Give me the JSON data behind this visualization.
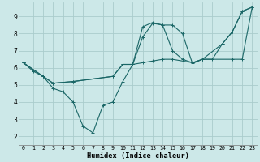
{
  "xlabel": "Humidex (Indice chaleur)",
  "background_color": "#cce8e8",
  "grid_color": "#aacccc",
  "line_color": "#1a6666",
  "xlim": [
    -0.5,
    23.5
  ],
  "ylim": [
    1.5,
    9.8
  ],
  "xticks": [
    0,
    1,
    2,
    3,
    4,
    5,
    6,
    7,
    8,
    9,
    10,
    11,
    12,
    13,
    14,
    15,
    16,
    17,
    18,
    19,
    20,
    21,
    22,
    23
  ],
  "yticks": [
    2,
    3,
    4,
    5,
    6,
    7,
    8,
    9
  ],
  "lines": [
    {
      "x": [
        0,
        1,
        2,
        3,
        4,
        5,
        6,
        7,
        8,
        9,
        10,
        11,
        12,
        13,
        14,
        15,
        16,
        17,
        18,
        19,
        20,
        21,
        22,
        23
      ],
      "y": [
        6.3,
        5.8,
        5.5,
        4.8,
        4.6,
        4.0,
        2.6,
        2.2,
        3.8,
        4.0,
        5.2,
        6.2,
        8.4,
        8.65,
        8.5,
        8.5,
        8.0,
        6.25,
        6.5,
        6.5,
        7.4,
        8.1,
        9.3,
        9.55
      ]
    },
    {
      "x": [
        0,
        2,
        3,
        5,
        9,
        10,
        11,
        12,
        13,
        14,
        15,
        17,
        18,
        21,
        22,
        23
      ],
      "y": [
        6.3,
        5.5,
        5.1,
        5.2,
        5.5,
        6.2,
        6.2,
        6.3,
        6.4,
        6.5,
        6.5,
        6.3,
        6.5,
        6.5,
        6.5,
        9.55
      ]
    },
    {
      "x": [
        0,
        2,
        3,
        5,
        9,
        10,
        11,
        12,
        13,
        14,
        15,
        16,
        17,
        18,
        20,
        21,
        22,
        23
      ],
      "y": [
        6.3,
        5.5,
        5.1,
        5.2,
        5.5,
        6.2,
        6.2,
        7.8,
        8.6,
        8.5,
        7.0,
        6.5,
        6.3,
        6.5,
        7.4,
        8.1,
        9.3,
        9.55
      ]
    }
  ]
}
